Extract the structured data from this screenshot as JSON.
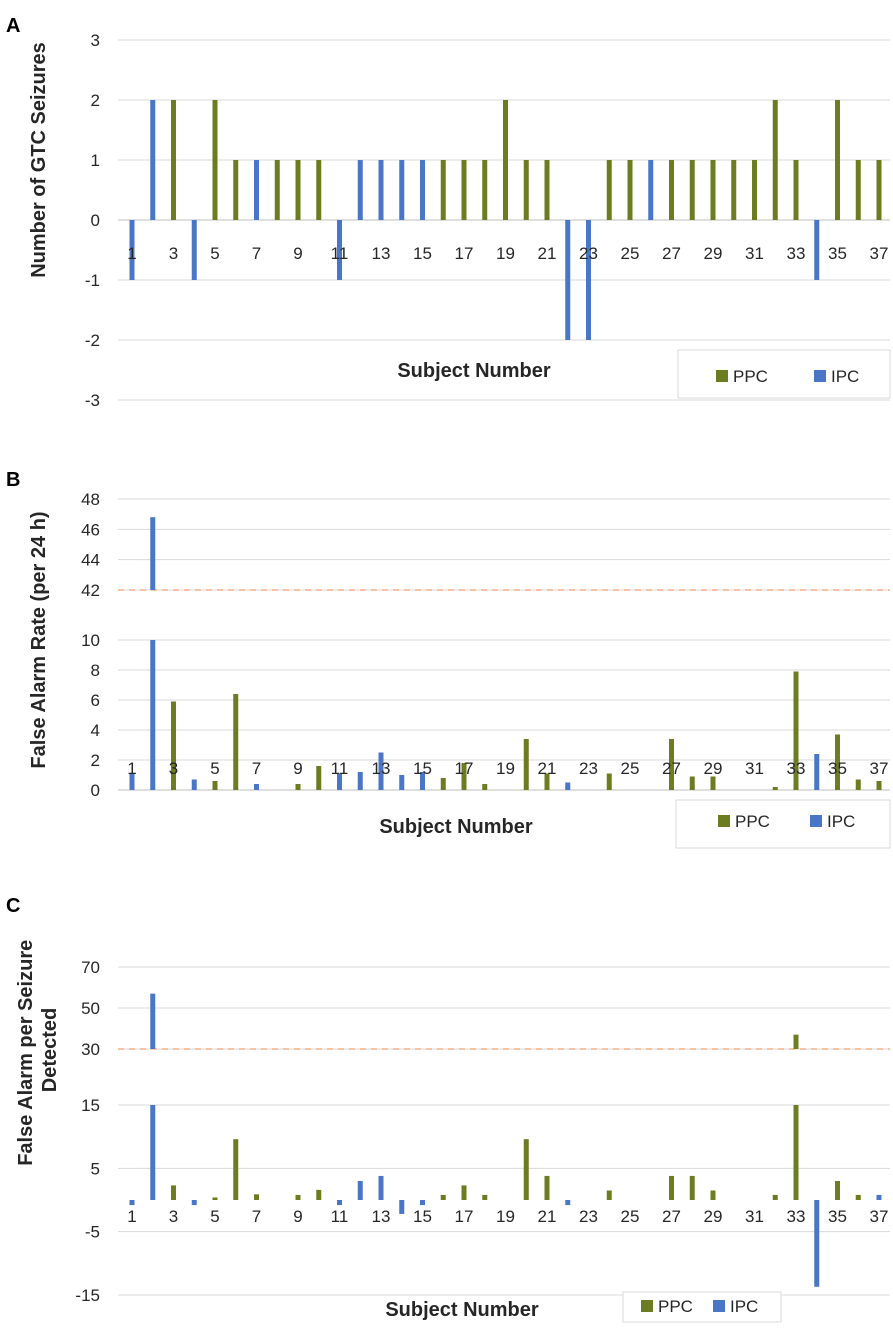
{
  "colors": {
    "PPC": "#6b7c21",
    "IPC": "#4a76c8",
    "grid": "#d9d9d9",
    "axis": "#bfbfbf",
    "break": "#f4b183"
  },
  "legend_entries": [
    "PPC",
    "IPC"
  ],
  "chart_data": [
    {
      "panel": "A",
      "type": "bar",
      "ylabel": "Number of GTC Seizures",
      "xlabel": "Subject Number",
      "ylim": [
        -3,
        3
      ],
      "yticks": [
        "3",
        "2",
        "1",
        "0",
        "-1",
        "-2",
        "-3"
      ],
      "xticks": [
        "1",
        "3",
        "5",
        "7",
        "9",
        "11",
        "13",
        "15",
        "17",
        "19",
        "21",
        "23",
        "25",
        "27",
        "29",
        "31",
        "33",
        "35",
        "37"
      ],
      "legend": "inside-bottom-right",
      "grid": true,
      "bars": [
        {
          "x": 1,
          "s": "IPC",
          "v": -1
        },
        {
          "x": 2,
          "s": "IPC",
          "v": 2
        },
        {
          "x": 3,
          "s": "PPC",
          "v": 2
        },
        {
          "x": 4,
          "s": "IPC",
          "v": -1
        },
        {
          "x": 5,
          "s": "PPC",
          "v": 2
        },
        {
          "x": 6,
          "s": "PPC",
          "v": 1
        },
        {
          "x": 7,
          "s": "IPC",
          "v": 1
        },
        {
          "x": 8,
          "s": "PPC",
          "v": 1
        },
        {
          "x": 9,
          "s": "PPC",
          "v": 1
        },
        {
          "x": 10,
          "s": "PPC",
          "v": 1
        },
        {
          "x": 11,
          "s": "IPC",
          "v": -1
        },
        {
          "x": 12,
          "s": "IPC",
          "v": 1
        },
        {
          "x": 13,
          "s": "IPC",
          "v": 1
        },
        {
          "x": 14,
          "s": "IPC",
          "v": 1
        },
        {
          "x": 15,
          "s": "IPC",
          "v": 1
        },
        {
          "x": 16,
          "s": "PPC",
          "v": 1
        },
        {
          "x": 17,
          "s": "PPC",
          "v": 1
        },
        {
          "x": 18,
          "s": "PPC",
          "v": 1
        },
        {
          "x": 19,
          "s": "PPC",
          "v": 2
        },
        {
          "x": 20,
          "s": "PPC",
          "v": 1
        },
        {
          "x": 21,
          "s": "PPC",
          "v": 1
        },
        {
          "x": 22,
          "s": "IPC",
          "v": -2
        },
        {
          "x": 23,
          "s": "IPC",
          "v": -2
        },
        {
          "x": 24,
          "s": "PPC",
          "v": 1
        },
        {
          "x": 25,
          "s": "PPC",
          "v": 1
        },
        {
          "x": 26,
          "s": "IPC",
          "v": 1
        },
        {
          "x": 27,
          "s": "PPC",
          "v": 1
        },
        {
          "x": 28,
          "s": "PPC",
          "v": 1
        },
        {
          "x": 29,
          "s": "PPC",
          "v": 1
        },
        {
          "x": 30,
          "s": "PPC",
          "v": 1
        },
        {
          "x": 31,
          "s": "PPC",
          "v": 1
        },
        {
          "x": 32,
          "s": "PPC",
          "v": 2
        },
        {
          "x": 33,
          "s": "PPC",
          "v": 1
        },
        {
          "x": 34,
          "s": "IPC",
          "v": -1
        },
        {
          "x": 35,
          "s": "PPC",
          "v": 2
        },
        {
          "x": 36,
          "s": "PPC",
          "v": 1
        },
        {
          "x": 37,
          "s": "PPC",
          "v": 1
        }
      ]
    },
    {
      "panel": "B",
      "type": "bar",
      "ylabel": "False Alarm Rate (per 24 h)",
      "xlabel": "Subject Number",
      "axis_break": true,
      "ylim_lower": [
        0,
        10
      ],
      "ylim_upper": [
        42,
        48
      ],
      "yticks": [
        "48",
        "46",
        "44",
        "42",
        "10",
        "8",
        "6",
        "4",
        "2",
        "0"
      ],
      "xticks": [
        "1",
        "3",
        "5",
        "7",
        "9",
        "11",
        "13",
        "15",
        "17",
        "19",
        "21",
        "23",
        "25",
        "27",
        "29",
        "31",
        "33",
        "35",
        "37"
      ],
      "legend": "bottom-right",
      "grid": true,
      "bars": [
        {
          "x": 1,
          "s": "IPC",
          "v": 1.1
        },
        {
          "x": 2,
          "s": "IPC",
          "v": 46.8
        },
        {
          "x": 3,
          "s": "PPC",
          "v": 5.9
        },
        {
          "x": 4,
          "s": "IPC",
          "v": 0.7
        },
        {
          "x": 5,
          "s": "PPC",
          "v": 0.6
        },
        {
          "x": 6,
          "s": "PPC",
          "v": 6.4
        },
        {
          "x": 7,
          "s": "IPC",
          "v": 0.4
        },
        {
          "x": 9,
          "s": "PPC",
          "v": 0.4
        },
        {
          "x": 10,
          "s": "PPC",
          "v": 1.6
        },
        {
          "x": 11,
          "s": "IPC",
          "v": 1.1
        },
        {
          "x": 12,
          "s": "IPC",
          "v": 1.2
        },
        {
          "x": 13,
          "s": "IPC",
          "v": 2.5
        },
        {
          "x": 14,
          "s": "IPC",
          "v": 1.0
        },
        {
          "x": 15,
          "s": "IPC",
          "v": 1.2
        },
        {
          "x": 16,
          "s": "PPC",
          "v": 0.8
        },
        {
          "x": 17,
          "s": "PPC",
          "v": 1.8
        },
        {
          "x": 18,
          "s": "PPC",
          "v": 0.4
        },
        {
          "x": 20,
          "s": "PPC",
          "v": 3.4
        },
        {
          "x": 21,
          "s": "PPC",
          "v": 1.1
        },
        {
          "x": 22,
          "s": "IPC",
          "v": 0.5
        },
        {
          "x": 24,
          "s": "PPC",
          "v": 1.1
        },
        {
          "x": 27,
          "s": "PPC",
          "v": 3.4
        },
        {
          "x": 28,
          "s": "PPC",
          "v": 0.9
        },
        {
          "x": 29,
          "s": "PPC",
          "v": 0.9
        },
        {
          "x": 32,
          "s": "PPC",
          "v": 0.2
        },
        {
          "x": 33,
          "s": "PPC",
          "v": 7.9
        },
        {
          "x": 34,
          "s": "IPC",
          "v": 2.4
        },
        {
          "x": 35,
          "s": "PPC",
          "v": 3.7
        },
        {
          "x": 36,
          "s": "PPC",
          "v": 0.7
        },
        {
          "x": 37,
          "s": "PPC",
          "v": 0.6
        }
      ]
    },
    {
      "panel": "C",
      "type": "bar",
      "ylabel": "False Alarm per Seizure Detected",
      "xlabel": "Subject Number",
      "axis_break": true,
      "ylim_lower": [
        -15,
        15
      ],
      "ylim_upper": [
        30,
        70
      ],
      "yticks": [
        "70",
        "50",
        "30",
        "15",
        "5",
        "-5",
        "-15"
      ],
      "xticks": [
        "1",
        "3",
        "5",
        "7",
        "9",
        "11",
        "13",
        "15",
        "17",
        "19",
        "21",
        "23",
        "25",
        "27",
        "29",
        "31",
        "33",
        "35",
        "37"
      ],
      "legend": "bottom-center",
      "grid": true,
      "bars": [
        {
          "x": 1,
          "s": "IPC",
          "v": -0.8
        },
        {
          "x": 2,
          "s": "IPC",
          "v": 57
        },
        {
          "x": 3,
          "s": "PPC",
          "v": 2.3
        },
        {
          "x": 4,
          "s": "IPC",
          "v": -0.8
        },
        {
          "x": 5,
          "s": "PPC",
          "v": 0.4
        },
        {
          "x": 6,
          "s": "PPC",
          "v": 9.6
        },
        {
          "x": 7,
          "s": "PPC",
          "v": 0.9
        },
        {
          "x": 9,
          "s": "PPC",
          "v": 0.8
        },
        {
          "x": 10,
          "s": "PPC",
          "v": 1.6
        },
        {
          "x": 11,
          "s": "IPC",
          "v": -0.8
        },
        {
          "x": 12,
          "s": "IPC",
          "v": 3.0
        },
        {
          "x": 13,
          "s": "IPC",
          "v": 3.8
        },
        {
          "x": 14,
          "s": "IPC",
          "v": -2.2
        },
        {
          "x": 15,
          "s": "IPC",
          "v": -0.8
        },
        {
          "x": 16,
          "s": "PPC",
          "v": 0.8
        },
        {
          "x": 17,
          "s": "PPC",
          "v": 2.3
        },
        {
          "x": 18,
          "s": "PPC",
          "v": 0.8
        },
        {
          "x": 20,
          "s": "PPC",
          "v": 9.6
        },
        {
          "x": 21,
          "s": "PPC",
          "v": 3.8
        },
        {
          "x": 22,
          "s": "IPC",
          "v": -0.8
        },
        {
          "x": 24,
          "s": "PPC",
          "v": 1.5
        },
        {
          "x": 27,
          "s": "PPC",
          "v": 3.8
        },
        {
          "x": 28,
          "s": "PPC",
          "v": 3.8
        },
        {
          "x": 29,
          "s": "PPC",
          "v": 1.5
        },
        {
          "x": 32,
          "s": "PPC",
          "v": 0.8
        },
        {
          "x": 33,
          "s": "PPC",
          "v": 37
        },
        {
          "x": 34,
          "s": "IPC",
          "v": -13.7
        },
        {
          "x": 35,
          "s": "PPC",
          "v": 3.0
        },
        {
          "x": 36,
          "s": "PPC",
          "v": 0.8
        },
        {
          "x": 37,
          "s": "IPC",
          "v": 0.8
        }
      ]
    }
  ]
}
